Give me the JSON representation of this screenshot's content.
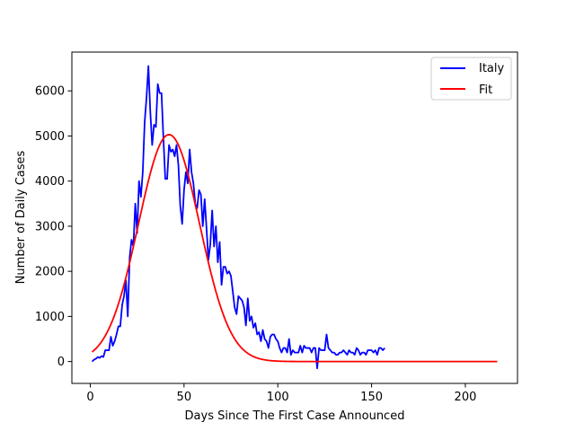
{
  "chart_data": {
    "type": "line",
    "xlabel": "Days Since The First Case Announced",
    "ylabel": "Number of Daily Cases",
    "xlim": [
      -9.8,
      227.8
    ],
    "ylim": [
      -485,
      6860
    ],
    "xticks": [
      0,
      50,
      100,
      150,
      200
    ],
    "yticks": [
      0,
      1000,
      2000,
      3000,
      4000,
      5000,
      6000
    ],
    "grid": false,
    "legend_position": "top-right",
    "series": [
      {
        "name": "Italy",
        "color": "#0000ff",
        "x": [
          1,
          2,
          3,
          4,
          5,
          6,
          7,
          8,
          9,
          10,
          11,
          12,
          13,
          14,
          15,
          16,
          17,
          18,
          19,
          20,
          21,
          22,
          23,
          24,
          25,
          26,
          27,
          28,
          29,
          30,
          31,
          32,
          33,
          34,
          35,
          36,
          37,
          38,
          39,
          40,
          41,
          42,
          43,
          44,
          45,
          46,
          47,
          48,
          49,
          50,
          51,
          52,
          53,
          54,
          55,
          56,
          57,
          58,
          59,
          60,
          61,
          62,
          63,
          64,
          65,
          66,
          67,
          68,
          69,
          70,
          71,
          72,
          73,
          74,
          75,
          76,
          77,
          78,
          79,
          80,
          81,
          82,
          83,
          84,
          85,
          86,
          87,
          88,
          89,
          90,
          91,
          92,
          93,
          94,
          95,
          96,
          97,
          98,
          99,
          100,
          101,
          102,
          103,
          104,
          105,
          106,
          107,
          108,
          109,
          110,
          111,
          112,
          113,
          114,
          115,
          116,
          117,
          118,
          119,
          120,
          121,
          122,
          123,
          124,
          125,
          126,
          127,
          128,
          129,
          130,
          131,
          132,
          133,
          134,
          135,
          136,
          137,
          138,
          139,
          140,
          141,
          142,
          143,
          144,
          145,
          146,
          147,
          148,
          149,
          150,
          151,
          152,
          153,
          154,
          155,
          156,
          157
        ],
        "y": [
          0,
          40,
          60,
          100,
          80,
          120,
          100,
          250,
          250,
          250,
          550,
          350,
          450,
          600,
          780,
          780,
          1250,
          1450,
          1800,
          1000,
          2300,
          2700,
          2550,
          3500,
          2850,
          4000,
          3650,
          4200,
          5300,
          5850,
          6550,
          5550,
          4800,
          5250,
          5200,
          6150,
          5950,
          5950,
          4950,
          4050,
          4050,
          4800,
          4650,
          4700,
          4550,
          4800,
          4350,
          3450,
          3050,
          3800,
          4200,
          3950,
          4700,
          4200,
          3950,
          3500,
          3400,
          3800,
          3700,
          3000,
          3600,
          2950,
          2250,
          2600,
          3350,
          2550,
          3000,
          2200,
          2650,
          1700,
          2100,
          2100,
          1950,
          2000,
          1900,
          1550,
          1200,
          1050,
          1450,
          1400,
          1350,
          1200,
          800,
          1400,
          900,
          1000,
          750,
          850,
          600,
          650,
          450,
          700,
          500,
          450,
          300,
          550,
          600,
          600,
          500,
          450,
          300,
          200,
          300,
          300,
          200,
          500,
          150,
          250,
          200,
          200,
          200,
          350,
          200,
          350,
          300,
          300,
          300,
          200,
          300,
          300,
          -150,
          300,
          250,
          250,
          250,
          600,
          300,
          250,
          200,
          200,
          150,
          150,
          200,
          200,
          250,
          200,
          150,
          250,
          200,
          200,
          150,
          300,
          250,
          150,
          200,
          200,
          150,
          250,
          250,
          250,
          200,
          250,
          150,
          300,
          300,
          250,
          300
        ]
      },
      {
        "name": "Fit",
        "color": "#ff0000",
        "model": {
          "peak": 5030,
          "center": 42,
          "sigma": 16.3
        },
        "x_range": [
          1,
          217
        ]
      }
    ]
  }
}
